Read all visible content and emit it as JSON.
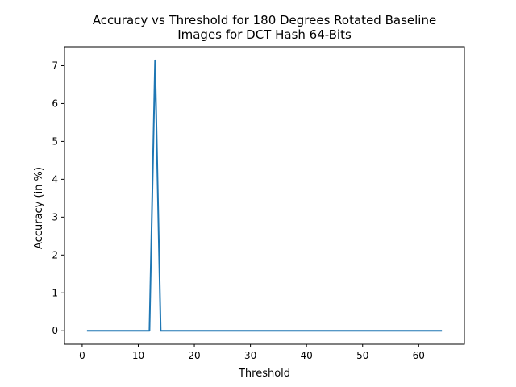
{
  "chart_data": {
    "type": "line",
    "title_lines": [
      "Accuracy vs Threshold for 180 Degrees Rotated Baseline",
      "Images for DCT Hash 64-Bits"
    ],
    "xlabel": "Threshold",
    "ylabel": "Accuracy (in %)",
    "xlim": [
      -3.15,
      68.15
    ],
    "ylim": [
      -0.357,
      7.5
    ],
    "x_ticks": [
      0,
      10,
      20,
      30,
      40,
      50,
      60
    ],
    "y_ticks": [
      0,
      1,
      2,
      3,
      4,
      5,
      6,
      7
    ],
    "grid": false,
    "legend": "none",
    "series_color": "#1f77b4",
    "series": [
      {
        "x": [
          1,
          2,
          3,
          4,
          5,
          6,
          7,
          8,
          9,
          10,
          11,
          12,
          13,
          14,
          15,
          16,
          17,
          18,
          19,
          20,
          21,
          22,
          23,
          24,
          25,
          26,
          27,
          28,
          29,
          30,
          31,
          32,
          33,
          34,
          35,
          36,
          37,
          38,
          39,
          40,
          41,
          42,
          43,
          44,
          45,
          46,
          47,
          48,
          49,
          50,
          51,
          52,
          53,
          54,
          55,
          56,
          57,
          58,
          59,
          60,
          61,
          62,
          63,
          64
        ],
        "y": [
          0,
          0,
          0,
          0,
          0,
          0,
          0,
          0,
          0,
          0,
          0,
          0,
          7.14,
          0,
          0,
          0,
          0,
          0,
          0,
          0,
          0,
          0,
          0,
          0,
          0,
          0,
          0,
          0,
          0,
          0,
          0,
          0,
          0,
          0,
          0,
          0,
          0,
          0,
          0,
          0,
          0,
          0,
          0,
          0,
          0,
          0,
          0,
          0,
          0,
          0,
          0,
          0,
          0,
          0,
          0,
          0,
          0,
          0,
          0,
          0,
          0,
          0,
          0,
          0
        ]
      }
    ]
  }
}
